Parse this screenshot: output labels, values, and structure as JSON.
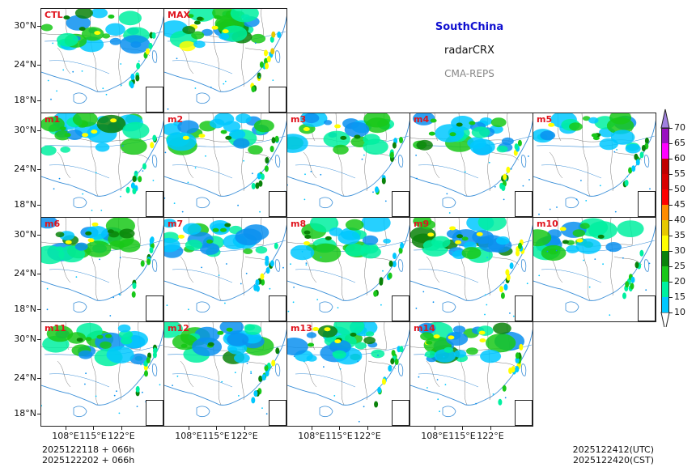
{
  "header": {
    "region": "SouthChina",
    "product": "radarCRX",
    "system": "CMA-REPS"
  },
  "panels": [
    {
      "label": "CTL",
      "intensity": 0.55
    },
    {
      "label": "MAX",
      "intensity": 1.0
    },
    {
      "label": "m1",
      "intensity": 0.6
    },
    {
      "label": "m2",
      "intensity": 0.55
    },
    {
      "label": "m3",
      "intensity": 0.5
    },
    {
      "label": "m4",
      "intensity": 0.6
    },
    {
      "label": "m5",
      "intensity": 0.45
    },
    {
      "label": "m6",
      "intensity": 0.65
    },
    {
      "label": "m7",
      "intensity": 0.6
    },
    {
      "label": "m8",
      "intensity": 0.5
    },
    {
      "label": "m9",
      "intensity": 0.7
    },
    {
      "label": "m10",
      "intensity": 0.5
    },
    {
      "label": "m11",
      "intensity": 0.55
    },
    {
      "label": "m12",
      "intensity": 0.65
    },
    {
      "label": "m13",
      "intensity": 0.7
    },
    {
      "label": "m14",
      "intensity": 0.75
    }
  ],
  "axes": {
    "lat_ticks": [
      "30°N",
      "24°N",
      "18°N"
    ],
    "lon_ticks": [
      "108°E",
      "115°E",
      "122°E"
    ]
  },
  "colorbar": {
    "levels": [
      "10",
      "15",
      "20",
      "25",
      "30",
      "35",
      "40",
      "45",
      "50",
      "55",
      "60",
      "65",
      "70"
    ],
    "colors": [
      "#0a90f0",
      "#00c8ff",
      "#00f0a0",
      "#19c819",
      "#0a820a",
      "#ffff00",
      "#e6c800",
      "#ff8c00",
      "#ff0000",
      "#d80000",
      "#c00000",
      "#ff00ff",
      "#9a10c0",
      "#a080e0"
    ]
  },
  "footer": {
    "init_utc": "2025122118  +  066h",
    "init_cst": "2025122202  +  066h",
    "valid_utc": "2025122412(UTC)",
    "valid_cst": "2025122420(CST)"
  }
}
